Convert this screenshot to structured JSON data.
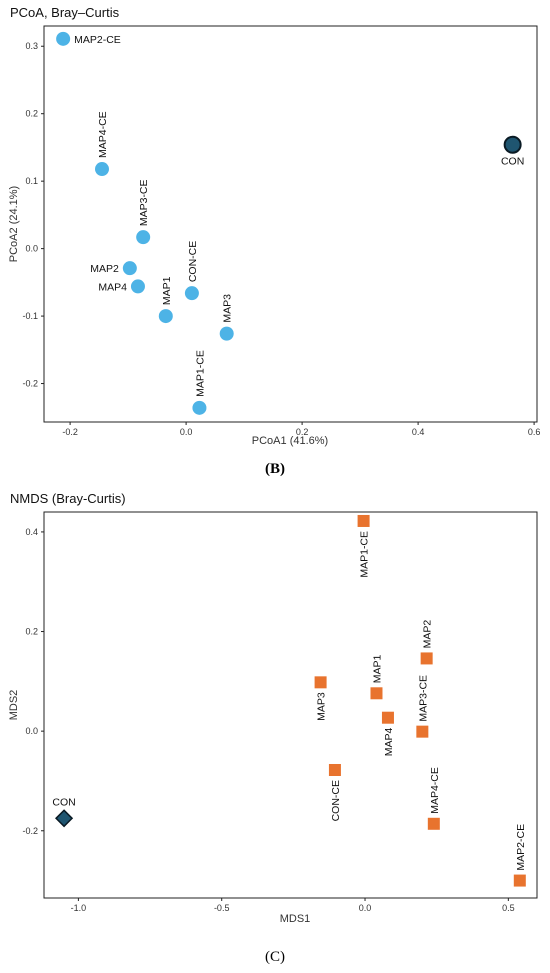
{
  "chart_data": [
    {
      "type": "scatter",
      "title": "PCoA, Bray–Curtis",
      "xlabel": "PCoA1 (41.6%)",
      "ylabel": "PCoA2 (24.1%)",
      "xlim": [
        -0.245,
        0.605
      ],
      "ylim": [
        -0.257,
        0.33
      ],
      "xticks": [
        -0.2,
        0.0,
        0.2,
        0.4,
        0.6
      ],
      "xtick_labels": [
        "-0.2",
        "0.0",
        "0.2",
        "0.4",
        "0.6"
      ],
      "yticks": [
        -0.2,
        -0.1,
        0.0,
        0.1,
        0.2,
        0.3
      ],
      "ytick_labels": [
        "-0.2",
        "-0.1",
        "0.0",
        "0.1",
        "0.2",
        "0.3"
      ],
      "grid": false,
      "panel_label": "(B)",
      "colors": {
        "samples": "#4db3e6",
        "control": "#1f5570",
        "control_edge": "#0a1a24"
      },
      "points": [
        {
          "label": "MAP2-CE",
          "x": -0.212,
          "y": 0.311,
          "marker": "circle",
          "color": "#4db3e6",
          "label_pos": "right",
          "label_rot": 0
        },
        {
          "label": "MAP4-CE",
          "x": -0.145,
          "y": 0.118,
          "marker": "circle",
          "color": "#4db3e6",
          "label_pos": "above",
          "label_rot": -90
        },
        {
          "label": "MAP3-CE",
          "x": -0.074,
          "y": 0.017,
          "marker": "circle",
          "color": "#4db3e6",
          "label_pos": "above",
          "label_rot": -90
        },
        {
          "label": "MAP2",
          "x": -0.097,
          "y": -0.029,
          "marker": "circle",
          "color": "#4db3e6",
          "label_pos": "left",
          "label_rot": 0
        },
        {
          "label": "MAP4",
          "x": -0.083,
          "y": -0.056,
          "marker": "circle",
          "color": "#4db3e6",
          "label_pos": "left",
          "label_rot": 0
        },
        {
          "label": "MAP1",
          "x": -0.035,
          "y": -0.1,
          "marker": "circle",
          "color": "#4db3e6",
          "label_pos": "above",
          "label_rot": -90
        },
        {
          "label": "CON-CE",
          "x": 0.01,
          "y": -0.066,
          "marker": "circle",
          "color": "#4db3e6",
          "label_pos": "above",
          "label_rot": -90
        },
        {
          "label": "MAP3",
          "x": 0.07,
          "y": -0.126,
          "marker": "circle",
          "color": "#4db3e6",
          "label_pos": "above",
          "label_rot": -90
        },
        {
          "label": "MAP1-CE",
          "x": 0.023,
          "y": -0.236,
          "marker": "circle",
          "color": "#4db3e6",
          "label_pos": "above",
          "label_rot": -90
        },
        {
          "label": "CON",
          "x": 0.563,
          "y": 0.154,
          "marker": "circle",
          "color": "#1f5570",
          "label_pos": "below",
          "label_rot": 0
        }
      ]
    },
    {
      "type": "scatter",
      "title": "NMDS (Bray-Curtis)",
      "xlabel": "MDS1",
      "ylabel": "MDS2",
      "xlim": [
        -1.12,
        0.6
      ],
      "ylim": [
        -0.335,
        0.44
      ],
      "xticks": [
        -1.0,
        -0.5,
        0.0,
        0.5
      ],
      "xtick_labels": [
        "-1.0",
        "-0.5",
        "0.0",
        "0.5"
      ],
      "yticks": [
        -0.2,
        0.0,
        0.2,
        0.4
      ],
      "ytick_labels": [
        "-0.2",
        "0.0",
        "0.2",
        "0.4"
      ],
      "grid": false,
      "panel_label": "(C)",
      "colors": {
        "samples": "#e8732e",
        "control": "#1f5570",
        "control_edge": "#0a1a24"
      },
      "points": [
        {
          "label": "MAP1-CE",
          "x": -0.005,
          "y": 0.422,
          "marker": "square",
          "color": "#e8732e",
          "label_pos": "below",
          "label_rot": -90
        },
        {
          "label": "MAP2",
          "x": 0.215,
          "y": 0.146,
          "marker": "square",
          "color": "#e8732e",
          "label_pos": "above",
          "label_rot": -90
        },
        {
          "label": "MAP1",
          "x": 0.04,
          "y": 0.076,
          "marker": "square",
          "color": "#e8732e",
          "label_pos": "above",
          "label_rot": -90
        },
        {
          "label": "MAP3",
          "x": -0.155,
          "y": 0.098,
          "marker": "square",
          "color": "#e8732e",
          "label_pos": "below",
          "label_rot": -90
        },
        {
          "label": "MAP4",
          "x": 0.08,
          "y": 0.027,
          "marker": "square",
          "color": "#e8732e",
          "label_pos": "below",
          "label_rot": -90
        },
        {
          "label": "MAP3-CE",
          "x": 0.2,
          "y": -0.001,
          "marker": "square",
          "color": "#e8732e",
          "label_pos": "above",
          "label_rot": -90
        },
        {
          "label": "CON-CE",
          "x": -0.105,
          "y": -0.078,
          "marker": "square",
          "color": "#e8732e",
          "label_pos": "below",
          "label_rot": -90
        },
        {
          "label": "MAP4-CE",
          "x": 0.24,
          "y": -0.186,
          "marker": "square",
          "color": "#e8732e",
          "label_pos": "above",
          "label_rot": -90
        },
        {
          "label": "MAP2-CE",
          "x": 0.54,
          "y": -0.3,
          "marker": "square",
          "color": "#e8732e",
          "label_pos": "above",
          "label_rot": -90
        },
        {
          "label": "CON",
          "x": -1.05,
          "y": -0.175,
          "marker": "diamond",
          "color": "#1f5570",
          "label_pos": "above",
          "label_rot": 0
        }
      ]
    }
  ]
}
